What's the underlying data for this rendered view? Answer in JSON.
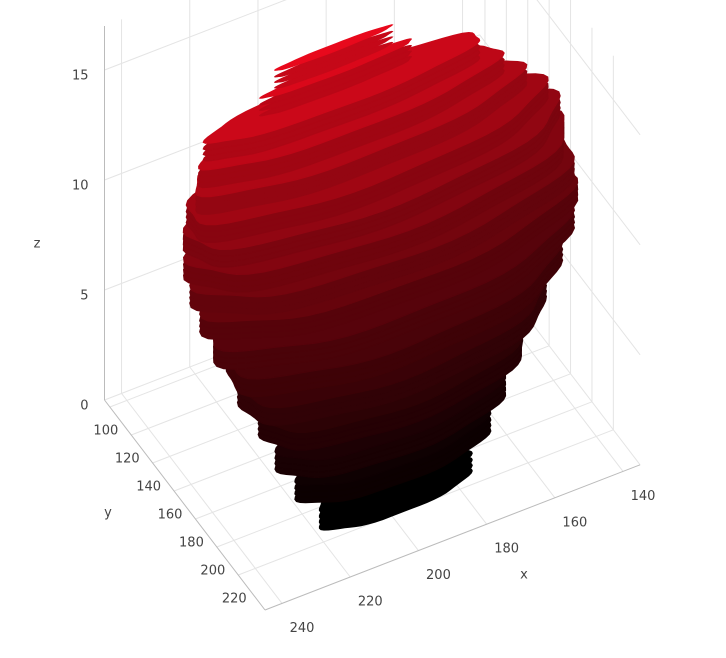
{
  "chart_data": {
    "type": "layers3d",
    "x_title": "x",
    "y_title": "y",
    "z_title": "z",
    "xlim": [
      135,
      245
    ],
    "ylim": [
      95,
      245
    ],
    "zlim": [
      0,
      17
    ],
    "xticks": [
      140,
      160,
      180,
      200,
      220,
      240
    ],
    "yticks": [
      100,
      120,
      140,
      160,
      180,
      200,
      220
    ],
    "zticks": [
      0,
      5,
      10,
      15
    ],
    "grid": true,
    "colorscale": [
      "#000000",
      "#e8091c"
    ],
    "layers": [
      {
        "z": 1,
        "xrange": [
          175,
          219
        ],
        "yrange": [
          203,
          223
        ]
      },
      {
        "z": 2,
        "xrange": [
          167,
          223
        ],
        "yrange": [
          191,
          219
        ]
      },
      {
        "z": 3,
        "xrange": [
          160,
          226
        ],
        "yrange": [
          180,
          216
        ]
      },
      {
        "z": 4,
        "xrange": [
          152,
          228
        ],
        "yrange": [
          168,
          212
        ]
      },
      {
        "z": 5,
        "xrange": [
          144,
          232
        ],
        "yrange": [
          158,
          208
        ]
      },
      {
        "z": 6,
        "xrange": [
          138,
          234
        ],
        "yrange": [
          149,
          203
        ]
      },
      {
        "z": 7,
        "xrange": [
          133,
          237
        ],
        "yrange": [
          142,
          198
        ]
      },
      {
        "z": 8,
        "xrange": [
          130,
          238
        ],
        "yrange": [
          137,
          193
        ]
      },
      {
        "z": 9,
        "xrange": [
          129,
          239
        ],
        "yrange": [
          134,
          190
        ]
      },
      {
        "z": 10,
        "xrange": [
          130,
          240
        ],
        "yrange": [
          133,
          187
        ]
      },
      {
        "z": 11,
        "xrange": [
          132,
          240
        ],
        "yrange": [
          133,
          183
        ]
      },
      {
        "z": 12,
        "xrange": [
          136,
          240
        ],
        "yrange": [
          135,
          179
        ]
      },
      {
        "z": 13,
        "xrange": [
          142,
          238
        ],
        "yrange": [
          138,
          174
        ]
      },
      {
        "z": 14,
        "xrange": [
          148,
          236
        ],
        "yrange": [
          142,
          170
        ]
      },
      {
        "z": 15,
        "xrange": [
          154,
          234
        ],
        "yrange": [
          146,
          166
        ]
      },
      {
        "z": 16,
        "xrange": [
          174,
          218
        ],
        "yrange": [
          153,
          159
        ]
      },
      {
        "z": 17,
        "xrange": [
          180,
          214
        ],
        "yrange": [
          154,
          158
        ]
      }
    ]
  }
}
